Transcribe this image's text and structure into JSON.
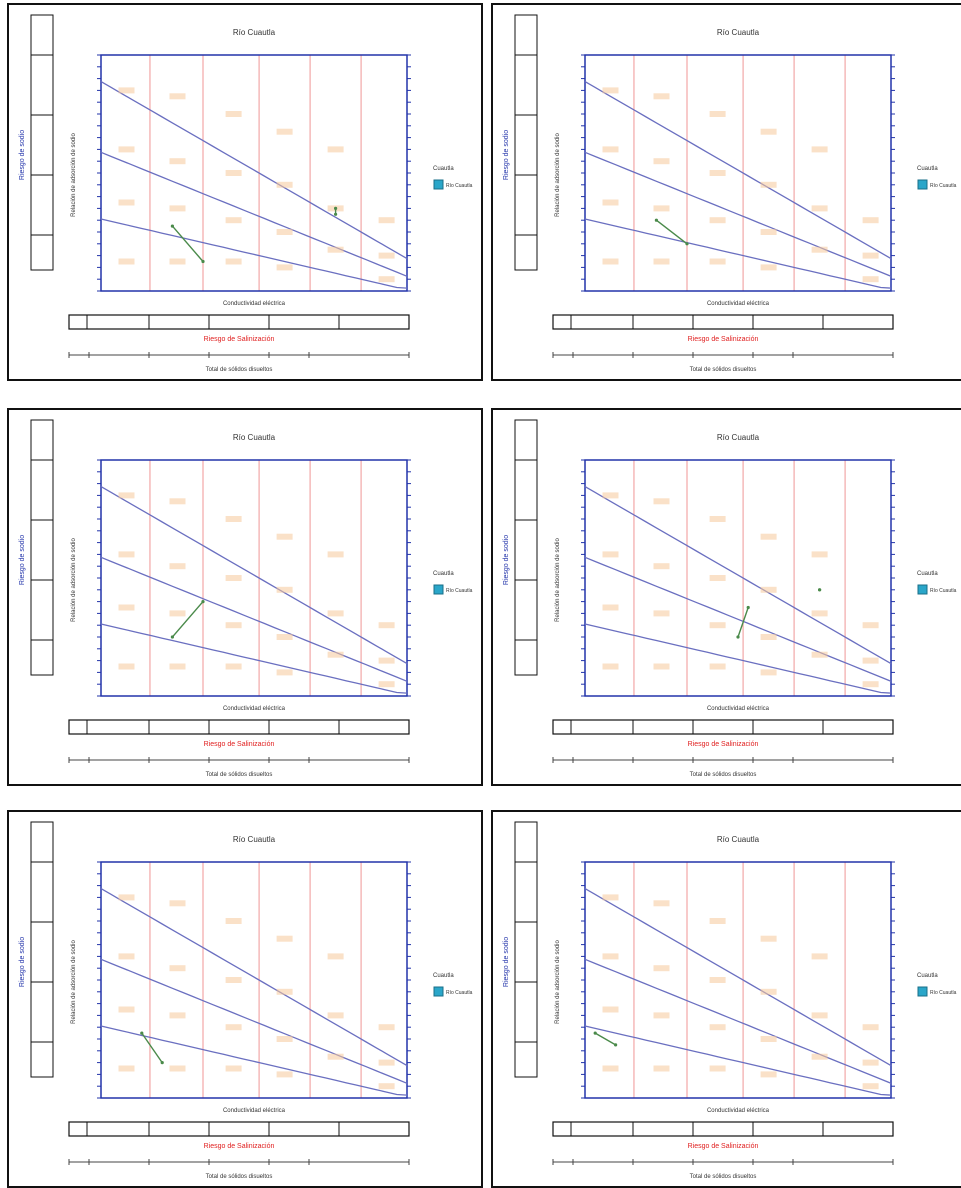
{
  "chart_data": [
    {
      "type": "line",
      "title": "Río Cuautla",
      "traces": [
        {
          "x": [
            1.7,
            2.0
          ],
          "y": [
            1.1,
            0.5
          ]
        },
        {
          "x": [
            3.3,
            3.3
          ],
          "y": [
            1.4,
            1.3
          ]
        }
      ]
    },
    {
      "type": "line",
      "title": "Río Cuautla",
      "traces": [
        {
          "x": [
            1.7,
            2.0
          ],
          "y": [
            1.2,
            0.8
          ]
        }
      ]
    },
    {
      "type": "line",
      "title": "Río Cuautla",
      "traces": [
        {
          "x": [
            1.7,
            2.0
          ],
          "y": [
            1.0,
            1.6
          ]
        }
      ]
    },
    {
      "type": "line",
      "title": "Río Cuautla",
      "traces": [
        {
          "x": [
            2.5,
            2.6
          ],
          "y": [
            1.0,
            1.5
          ]
        },
        {
          "x": [
            3.3,
            3.3
          ],
          "y": [
            1.8,
            1.8
          ]
        }
      ]
    },
    {
      "type": "line",
      "title": "Río Cuautla",
      "traces": [
        {
          "x": [
            1.4,
            1.6
          ],
          "y": [
            1.1,
            0.6
          ]
        }
      ]
    },
    {
      "type": "line",
      "title": "Río Cuautla",
      "traces": [
        {
          "x": [
            1.1,
            1.3
          ],
          "y": [
            1.1,
            0.9
          ]
        }
      ]
    }
  ],
  "shared": {
    "xlabel": "Conductividad eléctrica",
    "ylabel": "Relación de adsorción de sodio",
    "xlabel2": "Total de sólidos disueltos",
    "salinity_title": "Riesgo de Salinización",
    "sodium_title": "Riesgo de sodio",
    "legend_title": "Cuautla",
    "legend_item": "Río Cuautla",
    "colors": {
      "frame": "#111111",
      "axis": "#2233aa",
      "grid": "#f2a7a7",
      "zone_text": "#f5c99a",
      "curve": "#6a6fc0",
      "salinity_title": "#e02020",
      "data": "#4a8a4a",
      "legend_swatch": "#2aa6c9"
    }
  }
}
